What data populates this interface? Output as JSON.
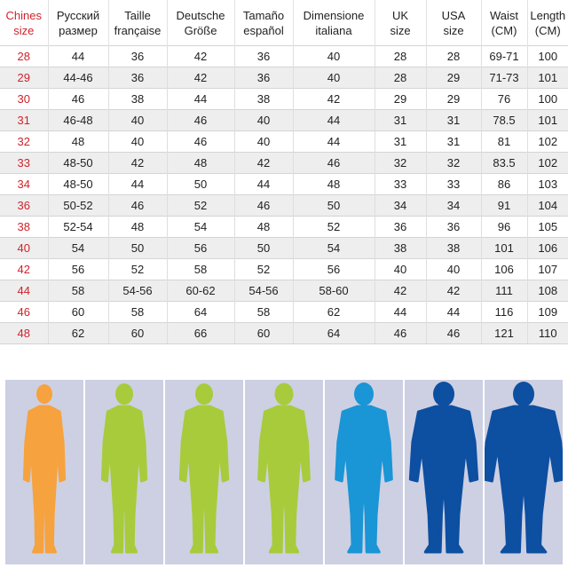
{
  "table": {
    "headers": [
      [
        "Chines",
        "size"
      ],
      [
        "Русский",
        "размер"
      ],
      [
        "Taille",
        "française"
      ],
      [
        "Deutsche",
        "Größe"
      ],
      [
        "Tamaño",
        "español"
      ],
      [
        "Dimensione",
        "italiana"
      ],
      [
        "UK",
        "size"
      ],
      [
        "USA",
        "size"
      ],
      [
        "Waist",
        "(CM)"
      ],
      [
        "Length",
        "(CM)"
      ]
    ],
    "rows": [
      [
        "28",
        "44",
        "36",
        "42",
        "36",
        "40",
        "28",
        "28",
        "69-71",
        "100"
      ],
      [
        "29",
        "44-46",
        "36",
        "42",
        "36",
        "40",
        "28",
        "29",
        "71-73",
        "101"
      ],
      [
        "30",
        "46",
        "38",
        "44",
        "38",
        "42",
        "29",
        "29",
        "76",
        "100"
      ],
      [
        "31",
        "46-48",
        "40",
        "46",
        "40",
        "44",
        "31",
        "31",
        "78.5",
        "101"
      ],
      [
        "32",
        "48",
        "40",
        "46",
        "40",
        "44",
        "31",
        "31",
        "81",
        "102"
      ],
      [
        "33",
        "48-50",
        "42",
        "48",
        "42",
        "46",
        "32",
        "32",
        "83.5",
        "102"
      ],
      [
        "34",
        "48-50",
        "44",
        "50",
        "44",
        "48",
        "33",
        "33",
        "86",
        "103"
      ],
      [
        "36",
        "50-52",
        "46",
        "52",
        "46",
        "50",
        "34",
        "34",
        "91",
        "104"
      ],
      [
        "38",
        "52-54",
        "48",
        "54",
        "48",
        "52",
        "36",
        "36",
        "96",
        "105"
      ],
      [
        "40",
        "54",
        "50",
        "56",
        "50",
        "54",
        "38",
        "38",
        "101",
        "106"
      ],
      [
        "42",
        "56",
        "52",
        "58",
        "52",
        "56",
        "40",
        "40",
        "106",
        "107"
      ],
      [
        "44",
        "58",
        "54-56",
        "60-62",
        "54-56",
        "58-60",
        "42",
        "42",
        "111",
        "108"
      ],
      [
        "46",
        "60",
        "58",
        "64",
        "58",
        "62",
        "44",
        "44",
        "116",
        "109"
      ],
      [
        "48",
        "62",
        "60",
        "66",
        "60",
        "64",
        "46",
        "46",
        "121",
        "110"
      ]
    ]
  },
  "figures": [
    {
      "icon": "body-silhouette-icon",
      "color": "#f6a23e"
    },
    {
      "icon": "body-silhouette-icon",
      "color": "#a8cb3c"
    },
    {
      "icon": "body-silhouette-icon",
      "color": "#a8cb3c"
    },
    {
      "icon": "body-silhouette-icon",
      "color": "#a8cb3c"
    },
    {
      "icon": "body-silhouette-icon",
      "color": "#1a95d6"
    },
    {
      "icon": "body-silhouette-icon",
      "color": "#0d4fa1"
    },
    {
      "icon": "body-silhouette-icon",
      "color": "#0d4fa1"
    }
  ],
  "colors": {
    "chinese_size_text": "#d0232a",
    "panel_background": "#cdd0e2",
    "row_shade": "#eeeeee"
  }
}
